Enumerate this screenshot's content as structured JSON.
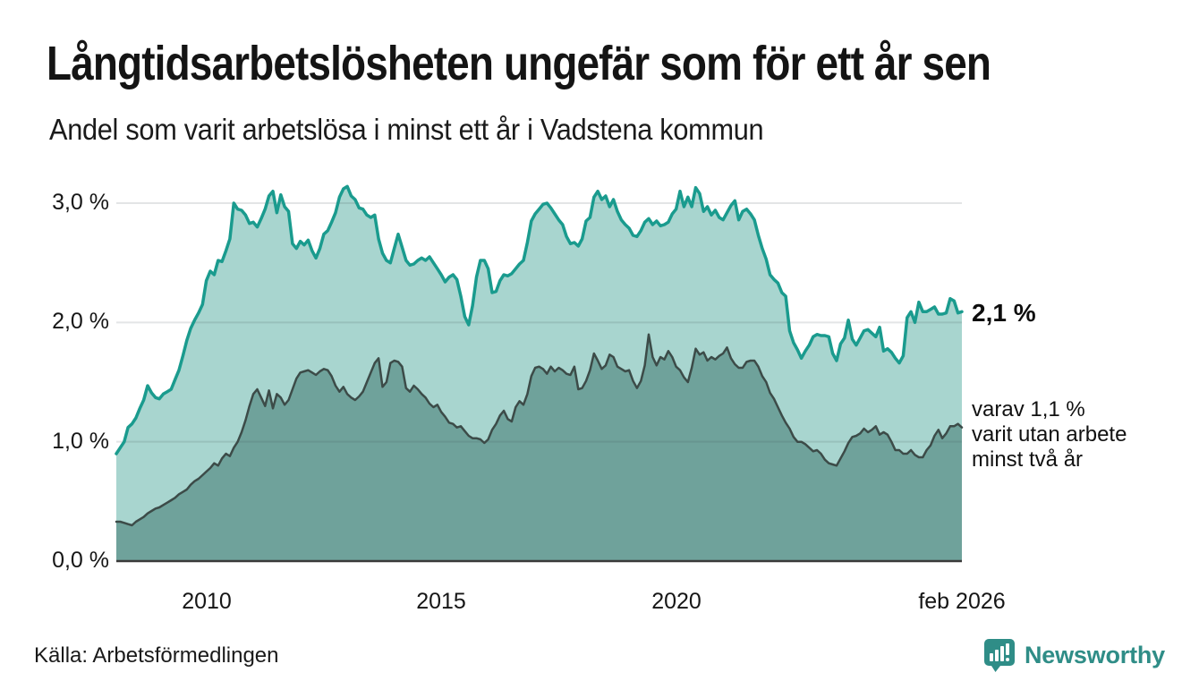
{
  "header": {
    "title": "Långtidsarbetslösheten ungefär som för ett år sen",
    "subtitle": "Andel som varit arbetslösa i minst ett år i Vadstena kommun"
  },
  "annotations": {
    "latest_total": "2,1 %",
    "secondary_lines": [
      "varav 1,1 %",
      "varit utan arbete",
      "minst två år"
    ]
  },
  "footer": {
    "source": "Källa: Arbetsförmedlingen",
    "brand": "Newsworthy"
  },
  "colors": {
    "title_text": "#141414",
    "accent_teal": "#1a9b8e",
    "area_light": "#a8d5cf",
    "line_dark": "#3c4b48",
    "area_dark": "#6fa29b",
    "grid": "rgba(60,70,75,0.14)",
    "axis": "#3a3a3a",
    "brand_teal": "#2f8d87"
  },
  "chart_data": {
    "type": "area",
    "title": "Långtidsarbetslösheten ungefär som för ett år sen",
    "subtitle": "Andel som varit arbetslösa i minst ett år i Vadstena kommun",
    "unit": "%",
    "frequency": "monthly",
    "x_start": "2008-02",
    "x_end": "2026-02",
    "ylim": [
      0,
      3.3
    ],
    "grid": "horizontal",
    "legend": "none",
    "y_ticks": [
      {
        "label": "3,0 %",
        "value": 3
      },
      {
        "label": "2,0 %",
        "value": 2
      },
      {
        "label": "1,0 %",
        "value": 1
      },
      {
        "label": "0,0 %",
        "value": 0
      }
    ],
    "x_ticks": [
      {
        "label": "2010",
        "month_index": 23
      },
      {
        "label": "2015",
        "month_index": 83
      },
      {
        "label": "2020",
        "month_index": 143
      },
      {
        "label": "feb 2026",
        "month_index": 216
      }
    ],
    "series": [
      {
        "name": "Andel arbetslösa minst ett år",
        "latest_label": "2,1 %",
        "line_color": "#1a9b8e",
        "fill_color": "#a8d5cf",
        "line_width": 3.5,
        "values": [
          0.9,
          0.95,
          1.0,
          1.12,
          1.15,
          1.2,
          1.28,
          1.35,
          1.47,
          1.41,
          1.37,
          1.36,
          1.4,
          1.42,
          1.44,
          1.52,
          1.6,
          1.72,
          1.85,
          1.95,
          2.02,
          2.08,
          2.15,
          2.35,
          2.43,
          2.4,
          2.52,
          2.51,
          2.6,
          2.7,
          3.0,
          2.95,
          2.94,
          2.9,
          2.83,
          2.84,
          2.8,
          2.87,
          2.95,
          3.06,
          3.1,
          2.92,
          3.07,
          2.97,
          2.93,
          2.66,
          2.62,
          2.68,
          2.65,
          2.69,
          2.6,
          2.54,
          2.62,
          2.74,
          2.77,
          2.84,
          2.92,
          3.05,
          3.12,
          3.14,
          3.06,
          3.03,
          2.96,
          2.95,
          2.9,
          2.88,
          2.9,
          2.7,
          2.58,
          2.52,
          2.5,
          2.62,
          2.74,
          2.63,
          2.52,
          2.48,
          2.49,
          2.52,
          2.54,
          2.52,
          2.55,
          2.5,
          2.45,
          2.4,
          2.34,
          2.38,
          2.4,
          2.36,
          2.22,
          2.05,
          1.98,
          2.14,
          2.38,
          2.52,
          2.52,
          2.45,
          2.25,
          2.26,
          2.35,
          2.4,
          2.39,
          2.41,
          2.45,
          2.49,
          2.52,
          2.67,
          2.85,
          2.91,
          2.95,
          2.99,
          3.0,
          2.96,
          2.91,
          2.86,
          2.82,
          2.72,
          2.66,
          2.67,
          2.64,
          2.7,
          2.85,
          2.88,
          3.05,
          3.1,
          3.03,
          3.06,
          2.97,
          3.03,
          2.93,
          2.86,
          2.82,
          2.79,
          2.73,
          2.72,
          2.77,
          2.84,
          2.87,
          2.82,
          2.85,
          2.81,
          2.82,
          2.84,
          2.91,
          2.95,
          3.1,
          2.97,
          3.05,
          2.97,
          3.13,
          3.08,
          2.93,
          2.97,
          2.9,
          2.94,
          2.88,
          2.86,
          2.92,
          2.98,
          3.02,
          2.86,
          2.93,
          2.95,
          2.91,
          2.86,
          2.73,
          2.62,
          2.53,
          2.4,
          2.36,
          2.33,
          2.25,
          2.22,
          1.93,
          1.83,
          1.77,
          1.7,
          1.76,
          1.81,
          1.88,
          1.9,
          1.89,
          1.89,
          1.88,
          1.74,
          1.68,
          1.82,
          1.87,
          2.02,
          1.86,
          1.81,
          1.87,
          1.93,
          1.94,
          1.91,
          1.88,
          1.96,
          1.76,
          1.78,
          1.75,
          1.7,
          1.66,
          1.72,
          2.04,
          2.09,
          2.0,
          2.17,
          2.09,
          2.09,
          2.11,
          2.13,
          2.07,
          2.07,
          2.08,
          2.2,
          2.18,
          2.08,
          2.09
        ]
      },
      {
        "name": "varav utan arbete minst två år",
        "latest_label": "1,1 %",
        "line_color": "#3c4b48",
        "fill_color": "#6fa29b",
        "line_width": 2.5,
        "values": [
          0.33,
          0.33,
          0.32,
          0.31,
          0.3,
          0.33,
          0.35,
          0.37,
          0.4,
          0.42,
          0.44,
          0.45,
          0.47,
          0.49,
          0.51,
          0.53,
          0.56,
          0.58,
          0.6,
          0.64,
          0.67,
          0.69,
          0.72,
          0.75,
          0.78,
          0.82,
          0.8,
          0.86,
          0.9,
          0.88,
          0.95,
          1.0,
          1.08,
          1.18,
          1.3,
          1.4,
          1.44,
          1.37,
          1.3,
          1.43,
          1.28,
          1.4,
          1.37,
          1.31,
          1.35,
          1.44,
          1.53,
          1.58,
          1.59,
          1.6,
          1.58,
          1.56,
          1.59,
          1.61,
          1.6,
          1.55,
          1.47,
          1.42,
          1.46,
          1.4,
          1.37,
          1.35,
          1.38,
          1.42,
          1.5,
          1.58,
          1.66,
          1.7,
          1.46,
          1.5,
          1.66,
          1.68,
          1.67,
          1.63,
          1.45,
          1.42,
          1.47,
          1.44,
          1.4,
          1.37,
          1.32,
          1.29,
          1.31,
          1.25,
          1.21,
          1.16,
          1.15,
          1.12,
          1.13,
          1.09,
          1.05,
          1.03,
          1.03,
          1.02,
          0.99,
          1.02,
          1.1,
          1.15,
          1.22,
          1.26,
          1.19,
          1.17,
          1.29,
          1.34,
          1.31,
          1.4,
          1.55,
          1.62,
          1.63,
          1.61,
          1.57,
          1.63,
          1.59,
          1.62,
          1.6,
          1.57,
          1.56,
          1.63,
          1.44,
          1.45,
          1.51,
          1.6,
          1.74,
          1.68,
          1.61,
          1.64,
          1.73,
          1.71,
          1.63,
          1.61,
          1.59,
          1.6,
          1.51,
          1.45,
          1.51,
          1.64,
          1.9,
          1.71,
          1.64,
          1.71,
          1.69,
          1.76,
          1.71,
          1.63,
          1.6,
          1.54,
          1.5,
          1.62,
          1.78,
          1.73,
          1.75,
          1.68,
          1.71,
          1.69,
          1.72,
          1.74,
          1.79,
          1.7,
          1.65,
          1.62,
          1.62,
          1.67,
          1.68,
          1.68,
          1.63,
          1.55,
          1.5,
          1.41,
          1.36,
          1.29,
          1.22,
          1.16,
          1.11,
          1.04,
          1.0,
          1.0,
          0.98,
          0.95,
          0.92,
          0.93,
          0.9,
          0.85,
          0.82,
          0.81,
          0.8,
          0.86,
          0.92,
          0.99,
          1.04,
          1.05,
          1.07,
          1.11,
          1.08,
          1.1,
          1.13,
          1.06,
          1.08,
          1.06,
          1.0,
          0.93,
          0.93,
          0.9,
          0.9,
          0.93,
          0.89,
          0.87,
          0.87,
          0.93,
          0.97,
          1.05,
          1.1,
          1.03,
          1.07,
          1.13,
          1.13,
          1.15,
          1.12
        ]
      }
    ]
  }
}
